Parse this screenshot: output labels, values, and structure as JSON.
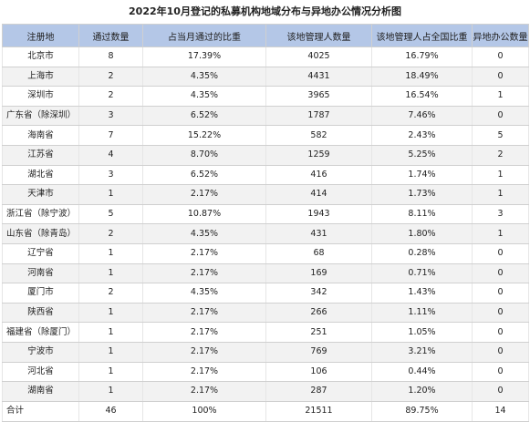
{
  "title": "2022年10月登记的私募机构地域分布与异地办公情况分析图",
  "headers": [
    "注册地",
    "通过数量",
    "占当月通过的比重",
    "该地管理人数量",
    "该地管理人占全国比重",
    "异地办公数量"
  ],
  "rows": [
    {
      "region": "北京市",
      "count": "8",
      "share": "17.39%",
      "managers": "4025",
      "national": "16.79%",
      "remote": "0"
    },
    {
      "region": "上海市",
      "count": "2",
      "share": "4.35%",
      "managers": "4431",
      "national": "18.49%",
      "remote": "0"
    },
    {
      "region": "深圳市",
      "count": "2",
      "share": "4.35%",
      "managers": "3965",
      "national": "16.54%",
      "remote": "1"
    },
    {
      "region": "广东省（除深圳）",
      "count": "3",
      "share": "6.52%",
      "managers": "1787",
      "national": "7.46%",
      "remote": "0"
    },
    {
      "region": "海南省",
      "count": "7",
      "share": "15.22%",
      "managers": "582",
      "national": "2.43%",
      "remote": "5"
    },
    {
      "region": "江苏省",
      "count": "4",
      "share": "8.70%",
      "managers": "1259",
      "national": "5.25%",
      "remote": "2"
    },
    {
      "region": "湖北省",
      "count": "3",
      "share": "6.52%",
      "managers": "416",
      "national": "1.74%",
      "remote": "1"
    },
    {
      "region": "天津市",
      "count": "1",
      "share": "2.17%",
      "managers": "414",
      "national": "1.73%",
      "remote": "1"
    },
    {
      "region": "浙江省（除宁波）",
      "count": "5",
      "share": "10.87%",
      "managers": "1943",
      "national": "8.11%",
      "remote": "3"
    },
    {
      "region": "山东省（除青岛）",
      "count": "2",
      "share": "4.35%",
      "managers": "431",
      "national": "1.80%",
      "remote": "1"
    },
    {
      "region": "辽宁省",
      "count": "1",
      "share": "2.17%",
      "managers": "68",
      "national": "0.28%",
      "remote": "0"
    },
    {
      "region": "河南省",
      "count": "1",
      "share": "2.17%",
      "managers": "169",
      "national": "0.71%",
      "remote": "0"
    },
    {
      "region": "厦门市",
      "count": "2",
      "share": "4.35%",
      "managers": "342",
      "national": "1.43%",
      "remote": "0"
    },
    {
      "region": "陕西省",
      "count": "1",
      "share": "2.17%",
      "managers": "266",
      "national": "1.11%",
      "remote": "0"
    },
    {
      "region": "福建省（除厦门）",
      "count": "1",
      "share": "2.17%",
      "managers": "251",
      "national": "1.05%",
      "remote": "0"
    },
    {
      "region": "宁波市",
      "count": "1",
      "share": "2.17%",
      "managers": "769",
      "national": "3.21%",
      "remote": "0"
    },
    {
      "region": "河北省",
      "count": "1",
      "share": "2.17%",
      "managers": "106",
      "national": "0.44%",
      "remote": "0"
    },
    {
      "region": "湖南省",
      "count": "1",
      "share": "2.17%",
      "managers": "287",
      "national": "1.20%",
      "remote": "0"
    }
  ],
  "total": {
    "region": "合计",
    "count": "46",
    "share": "100%",
    "managers": "21511",
    "national": "89.75%",
    "remote": "14"
  }
}
